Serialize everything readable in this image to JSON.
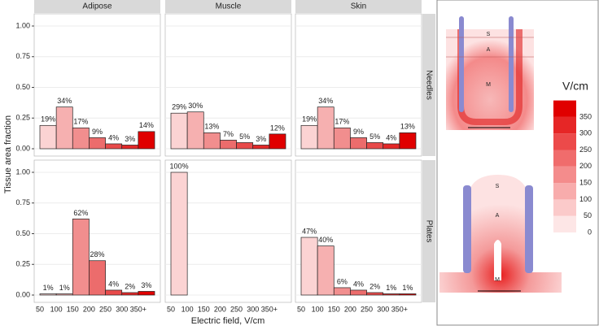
{
  "chart_data": {
    "type": "bar",
    "y_label": "Tissue area fraction",
    "x_label": "Electric field, V/cm",
    "columns": [
      "Adipose",
      "Muscle",
      "Skin"
    ],
    "rows": [
      "Needles",
      "Plates"
    ],
    "categories": [
      "50",
      "100",
      "150",
      "200",
      "250",
      "300",
      "350+"
    ],
    "colors": [
      "#fbd3d3",
      "#f6b0b0",
      "#f18e8e",
      "#ec6c6c",
      "#e84a4a",
      "#e42828",
      "#e00000"
    ],
    "ylim": [
      0,
      1
    ],
    "yticks": [
      {
        "value": 0,
        "label": "0.00"
      },
      {
        "value": 0.25,
        "label": "0.25"
      },
      {
        "value": 0.5,
        "label": "0.50"
      },
      {
        "value": 0.75,
        "label": "0.75"
      },
      {
        "value": 1,
        "label": "1.00"
      }
    ],
    "grid": true,
    "panels": [
      {
        "values": [
          0.19,
          0.34,
          0.17,
          0.09,
          0.04,
          0.03,
          0.14
        ],
        "value_labels": [
          "19%",
          "34%",
          "17%",
          "9%",
          "4%",
          "3%",
          "14%"
        ]
      },
      {
        "values": [
          0.29,
          0.3,
          0.13,
          0.07,
          0.05,
          0.03,
          0.12
        ],
        "value_labels": [
          "29%",
          "30%",
          "13%",
          "7%",
          "5%",
          "3%",
          "12%"
        ]
      },
      {
        "values": [
          0.19,
          0.34,
          0.17,
          0.09,
          0.05,
          0.04,
          0.13
        ],
        "value_labels": [
          "19%",
          "34%",
          "17%",
          "9%",
          "5%",
          "4%",
          "13%"
        ]
      },
      {
        "values": [
          0.01,
          0.01,
          0.62,
          0.28,
          0.04,
          0.02,
          0.03
        ],
        "value_labels": [
          "1%",
          "1%",
          "62%",
          "28%",
          "4%",
          "2%",
          "3%"
        ]
      },
      {
        "values": [
          1,
          null,
          null,
          null,
          null,
          null,
          null
        ],
        "value_labels": [
          "100%",
          null,
          null,
          null,
          null,
          null,
          null
        ]
      },
      {
        "values": [
          0.47,
          0.4,
          0.06,
          0.04,
          0.02,
          0.01,
          0.01
        ],
        "value_labels": [
          "47%",
          "40%",
          "6%",
          "4%",
          "2%",
          "1%",
          "1%"
        ]
      }
    ]
  },
  "diagram": {
    "colorbar_title": "V/cm",
    "colorbar_ticks": [
      0,
      50,
      100,
      150,
      200,
      250,
      300,
      350
    ],
    "needles_labels": [
      "S",
      "A",
      "M"
    ],
    "plates_labels": [
      "S",
      "A",
      "M"
    ]
  }
}
